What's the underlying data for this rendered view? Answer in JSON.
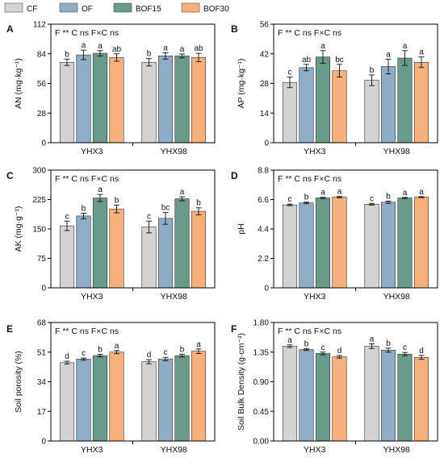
{
  "legend": {
    "items": [
      {
        "label": "CF",
        "color": "#d3d3d3"
      },
      {
        "label": "OF",
        "color": "#90adc6"
      },
      {
        "label": "BOF15",
        "color": "#6a9a8a"
      },
      {
        "label": "BOF30",
        "color": "#f8b07a"
      }
    ]
  },
  "colors": {
    "CF": "#d3d3d3",
    "OF": "#90adc6",
    "BOF15": "#6a9a8a",
    "BOF30": "#f8b07a",
    "axis": "#000000"
  },
  "chart_data": [
    {
      "panel": "A",
      "type": "bar",
      "ylabel": "AN (mg·kg⁻¹)",
      "stats": "F ** C ns F×C ns",
      "categories": [
        "YHX3",
        "YHX98"
      ],
      "ylim": [
        0,
        112
      ],
      "yticks": [
        0,
        28,
        56,
        84,
        112
      ],
      "series": [
        {
          "name": "CF",
          "values": [
            76,
            76
          ],
          "errors": [
            3,
            3.5
          ],
          "letters": [
            "b",
            "b"
          ]
        },
        {
          "name": "OF",
          "values": [
            83,
            82
          ],
          "errors": [
            4.5,
            3
          ],
          "letters": [
            "a",
            "a"
          ]
        },
        {
          "name": "BOF15",
          "values": [
            84.5,
            82
          ],
          "errors": [
            2.5,
            1.8
          ],
          "letters": [
            "a",
            "a"
          ]
        },
        {
          "name": "BOF30",
          "values": [
            80.5,
            80.5
          ],
          "errors": [
            3.5,
            4
          ],
          "letters": [
            "ab",
            "ab"
          ]
        }
      ]
    },
    {
      "panel": "B",
      "type": "bar",
      "ylabel": "AP (mg·kg⁻¹)",
      "stats": "F ** C ns F×C ns",
      "categories": [
        "YHX3",
        "YHX98"
      ],
      "ylim": [
        0,
        56
      ],
      "yticks": [
        0,
        14,
        28,
        42,
        56
      ],
      "series": [
        {
          "name": "CF",
          "values": [
            28.5,
            29.5
          ],
          "errors": [
            2.5,
            2.5
          ],
          "letters": [
            "c",
            "b"
          ]
        },
        {
          "name": "OF",
          "values": [
            35.5,
            36
          ],
          "errors": [
            1.5,
            3.5
          ],
          "letters": [
            "ab",
            "a"
          ]
        },
        {
          "name": "BOF15",
          "values": [
            40.5,
            40
          ],
          "errors": [
            3,
            3.5
          ],
          "letters": [
            "a",
            "a"
          ]
        },
        {
          "name": "BOF30",
          "values": [
            34,
            38
          ],
          "errors": [
            3,
            2.5
          ],
          "letters": [
            "bc",
            "a"
          ]
        }
      ]
    },
    {
      "panel": "C",
      "type": "bar",
      "ylabel": "AK (mg·g⁻¹)",
      "stats": "F ** C ns F×C ns",
      "categories": [
        "YHX3",
        "YHX98"
      ],
      "ylim": [
        0,
        300
      ],
      "yticks": [
        0,
        75,
        150,
        225,
        300
      ],
      "series": [
        {
          "name": "CF",
          "values": [
            158,
            155
          ],
          "errors": [
            12,
            15
          ],
          "letters": [
            "c",
            "c"
          ]
        },
        {
          "name": "OF",
          "values": [
            183,
            177
          ],
          "errors": [
            7,
            15
          ],
          "letters": [
            "b",
            "bc"
          ]
        },
        {
          "name": "BOF15",
          "values": [
            229,
            227
          ],
          "errors": [
            9,
            5
          ],
          "letters": [
            "a",
            "a"
          ]
        },
        {
          "name": "BOF30",
          "values": [
            201,
            195
          ],
          "errors": [
            10,
            9
          ],
          "letters": [
            "b",
            "b"
          ]
        }
      ]
    },
    {
      "panel": "D",
      "type": "bar",
      "ylabel": "pH",
      "stats": "F ** C ns F×C ns",
      "categories": [
        "YHX3",
        "YHX98"
      ],
      "ylim": [
        0,
        8.8
      ],
      "yticks": [
        0,
        2.2,
        4.4,
        6.6,
        8.8
      ],
      "series": [
        {
          "name": "CF",
          "values": [
            6.2,
            6.25
          ],
          "errors": [
            0.06,
            0.06
          ],
          "letters": [
            "c",
            "c"
          ]
        },
        {
          "name": "OF",
          "values": [
            6.35,
            6.4
          ],
          "errors": [
            0.06,
            0.08
          ],
          "letters": [
            "b",
            "b"
          ]
        },
        {
          "name": "BOF15",
          "values": [
            6.72,
            6.72
          ],
          "errors": [
            0.05,
            0.04
          ],
          "letters": [
            "a",
            "a"
          ]
        },
        {
          "name": "BOF30",
          "values": [
            6.78,
            6.78
          ],
          "errors": [
            0.05,
            0.04
          ],
          "letters": [
            "a",
            "a"
          ]
        }
      ]
    },
    {
      "panel": "E",
      "type": "bar",
      "ylabel": "Soil porosity (%)",
      "stats": "F ** C ns F×C ns",
      "categories": [
        "YHX3",
        "YHX98"
      ],
      "ylim": [
        0,
        68
      ],
      "yticks": [
        0,
        17,
        34,
        51,
        68
      ],
      "series": [
        {
          "name": "CF",
          "values": [
            45,
            45.5
          ],
          "errors": [
            0.8,
            1.2
          ],
          "letters": [
            "d",
            "d"
          ]
        },
        {
          "name": "OF",
          "values": [
            47,
            47
          ],
          "errors": [
            0.6,
            1
          ],
          "letters": [
            "c",
            "c"
          ]
        },
        {
          "name": "BOF15",
          "values": [
            49,
            49
          ],
          "errors": [
            0.7,
            0.8
          ],
          "letters": [
            "b",
            "b"
          ]
        },
        {
          "name": "BOF30",
          "values": [
            51,
            51.5
          ],
          "errors": [
            0.9,
            1.3
          ],
          "letters": [
            "a",
            "a"
          ]
        }
      ]
    },
    {
      "panel": "F",
      "type": "bar",
      "ylabel": "Soil Bulk Density (g·cm⁻³)",
      "stats": "F ** C ns F×C ns",
      "categories": [
        "YHX3",
        "YHX98"
      ],
      "ylim": [
        0,
        1.8
      ],
      "yticks": [
        0.0,
        0.45,
        0.9,
        1.35,
        1.8
      ],
      "ytick_decimals": 2,
      "series": [
        {
          "name": "CF",
          "values": [
            1.44,
            1.44
          ],
          "errors": [
            0.02,
            0.035
          ],
          "letters": [
            "a",
            "a"
          ]
        },
        {
          "name": "OF",
          "values": [
            1.39,
            1.38
          ],
          "errors": [
            0.015,
            0.03
          ],
          "letters": [
            "b",
            "b"
          ]
        },
        {
          "name": "BOF15",
          "values": [
            1.33,
            1.32
          ],
          "errors": [
            0.02,
            0.025
          ],
          "letters": [
            "c",
            "c"
          ]
        },
        {
          "name": "BOF30",
          "values": [
            1.28,
            1.27
          ],
          "errors": [
            0.02,
            0.03
          ],
          "letters": [
            "d",
            "d"
          ]
        }
      ]
    }
  ]
}
